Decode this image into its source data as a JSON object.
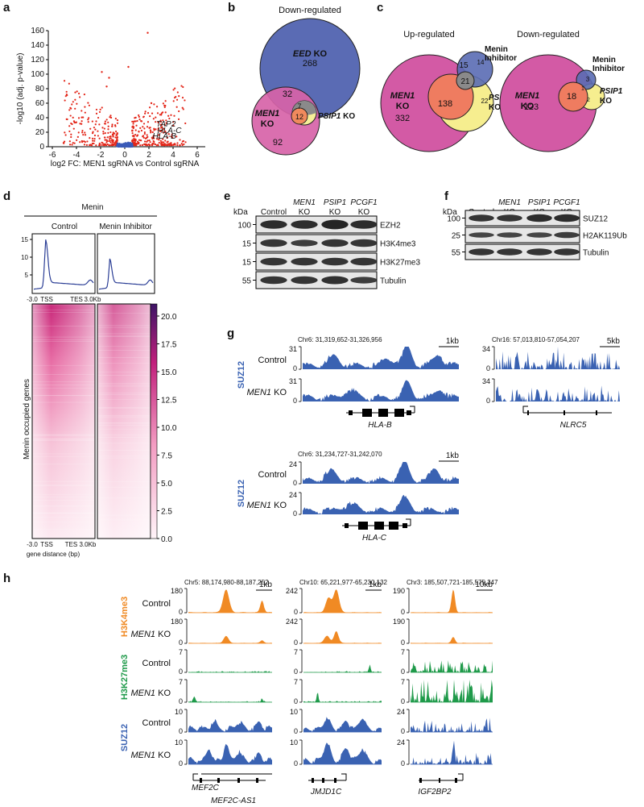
{
  "panel_labels": [
    "a",
    "b",
    "c",
    "d",
    "e",
    "f",
    "g",
    "h"
  ],
  "volcano": {
    "y_label": "-log10 (adj. p-value)",
    "x_label": "log2 FC: MEN1 sgRNA vs Control sgRNA",
    "yticks": [
      "0",
      "20",
      "40",
      "60",
      "80",
      "100",
      "120",
      "140",
      "160"
    ],
    "xticks": [
      "-6",
      "-4",
      "-2",
      "0",
      "2",
      "4",
      "6"
    ],
    "genes": [
      "TAP2",
      "HLA-C",
      "HLA-B"
    ]
  },
  "venn_b": {
    "title": "Down-regulated",
    "eed_gene": "EED",
    "eed_ko": "KO",
    "eed_count": "268",
    "men1_gene": "MEN1",
    "men1_ko": "KO",
    "men1_count": "92",
    "psip1_gene": "PSIP1",
    "psip1_ko": "KO",
    "overlaps": [
      "32",
      "7",
      "12"
    ]
  },
  "venn_c": [
    {
      "title": "Up-regulated",
      "men1_gene": "MEN1",
      "men1_ko": "KO",
      "men1_count": "332",
      "inhibitor": "Menin Inhibitor",
      "psip1_gene": "PSIP1",
      "psip1_ko": "KO",
      "counts": [
        "15",
        "14",
        "21",
        "138",
        "22"
      ]
    },
    {
      "title": "Down-regulated",
      "men1_gene": "MEN1",
      "men1_ko": "KO",
      "men1_count": "123",
      "inhibitor": "Menin Inhibitor",
      "psip1_gene": "PSIP1",
      "psip1_ko": "KO",
      "counts": [
        "3",
        "18",
        "1",
        "2"
      ]
    }
  ],
  "profile": {
    "title": "Menin",
    "groups": [
      "Control",
      "Menin Inhibitor"
    ],
    "yticks": [
      "5",
      "10",
      "15"
    ],
    "x_start": "-3.0",
    "tss": "TSS",
    "tes": "TES",
    "x_end": "3.0Kb",
    "heatmap_label": "Menin occupied genes",
    "heat_x": [
      "-3.0",
      "TSS",
      "TES 3.0Kb"
    ],
    "heat_x_label": "gene distance (bp)",
    "colorbar_ticks": [
      "0.0",
      "2.5",
      "5.0",
      "7.5",
      "10.0",
      "12.5",
      "15.0",
      "17.5",
      "20.0"
    ]
  },
  "blot_e": {
    "unit": "kDa",
    "lanes": [
      [
        "Control"
      ],
      [
        "MEN1",
        "KO"
      ],
      [
        "PSIP1",
        "KO"
      ],
      [
        "PCGF1",
        "KO"
      ]
    ],
    "rows": [
      {
        "kda": "100",
        "label": "EZH2"
      },
      {
        "kda": "15",
        "label": "H3K4me3"
      },
      {
        "kda": "15",
        "label": "H3K27me3"
      },
      {
        "kda": "55",
        "label": "Tubulin"
      }
    ]
  },
  "blot_f": {
    "unit": "kDa",
    "lanes": [
      [
        "Control"
      ],
      [
        "MEN1",
        "KO"
      ],
      [
        "PSIP1",
        "KO"
      ],
      [
        "PCGF1",
        "KO"
      ]
    ],
    "rows": [
      {
        "kda": "100",
        "label": "SUZ12"
      },
      {
        "kda": "25",
        "label": "H2AK119Ub"
      },
      {
        "kda": "55",
        "label": "Tubulin"
      }
    ]
  },
  "tracks_g": {
    "mark": "SUZ12",
    "control": "Control",
    "ko_gene": "MEN1",
    "ko": "KO",
    "regions": [
      {
        "coord": "Chr6: 31,319,652-31,326,956",
        "scale": "1kb",
        "gene": "HLA-B",
        "ylabels": [
          [
            "31",
            "0"
          ],
          [
            "31",
            "0"
          ]
        ]
      },
      {
        "coord": "Chr16: 57,013,810-57,054,207",
        "scale": "5kb",
        "gene": "NLRC5",
        "ylabels": [
          [
            "34",
            "0"
          ],
          [
            "34",
            "0"
          ]
        ]
      },
      {
        "coord": "Chr6: 31,234,727-31,242,070",
        "scale": "1kb",
        "gene": "HLA-C",
        "ylabels": [
          [
            "24",
            "0"
          ],
          [
            "24",
            "0"
          ]
        ]
      }
    ]
  },
  "tracks_h": {
    "marks": [
      {
        "name": "H3K4me3",
        "control": "Control",
        "ko_gene": "MEN1",
        "ko": "KO"
      },
      {
        "name": "H3K27me3",
        "control": "Control",
        "ko_gene": "MEN1",
        "ko": "KO"
      },
      {
        "name": "SUZ12",
        "control": "Control",
        "ko_gene": "MEN1",
        "ko": "KO"
      }
    ],
    "regions": [
      {
        "coord": "Chr5: 88,174,980-88,187,252",
        "scale": "1kb",
        "genes": [
          "MEF2C",
          "MEF2C-AS1"
        ],
        "ylabels": [
          [
            "180",
            "0"
          ],
          [
            "180",
            "0"
          ],
          [
            "7",
            "0"
          ],
          [
            "7",
            "0"
          ],
          [
            "10",
            "0"
          ],
          [
            "10",
            "0"
          ]
        ]
      },
      {
        "coord": "Chr10: 65,221,977-65,230,132",
        "scale": "1kb",
        "genes": [
          "JMJD1C"
        ],
        "ylabels": [
          [
            "242",
            "0"
          ],
          [
            "242",
            "0"
          ],
          [
            "7",
            "0"
          ],
          [
            "7",
            "0"
          ],
          [
            "10",
            "0"
          ],
          [
            "10",
            "0"
          ]
        ]
      },
      {
        "coord": "Chr3: 185,507,721-185,575,247",
        "scale": "10kb",
        "genes": [
          "IGF2BP2"
        ],
        "ylabels": [
          [
            "190",
            "0"
          ],
          [
            "190",
            "0"
          ],
          [
            "7",
            "0"
          ],
          [
            "7",
            "0"
          ],
          [
            "24",
            "0"
          ],
          [
            "24",
            "0"
          ]
        ]
      }
    ]
  }
}
